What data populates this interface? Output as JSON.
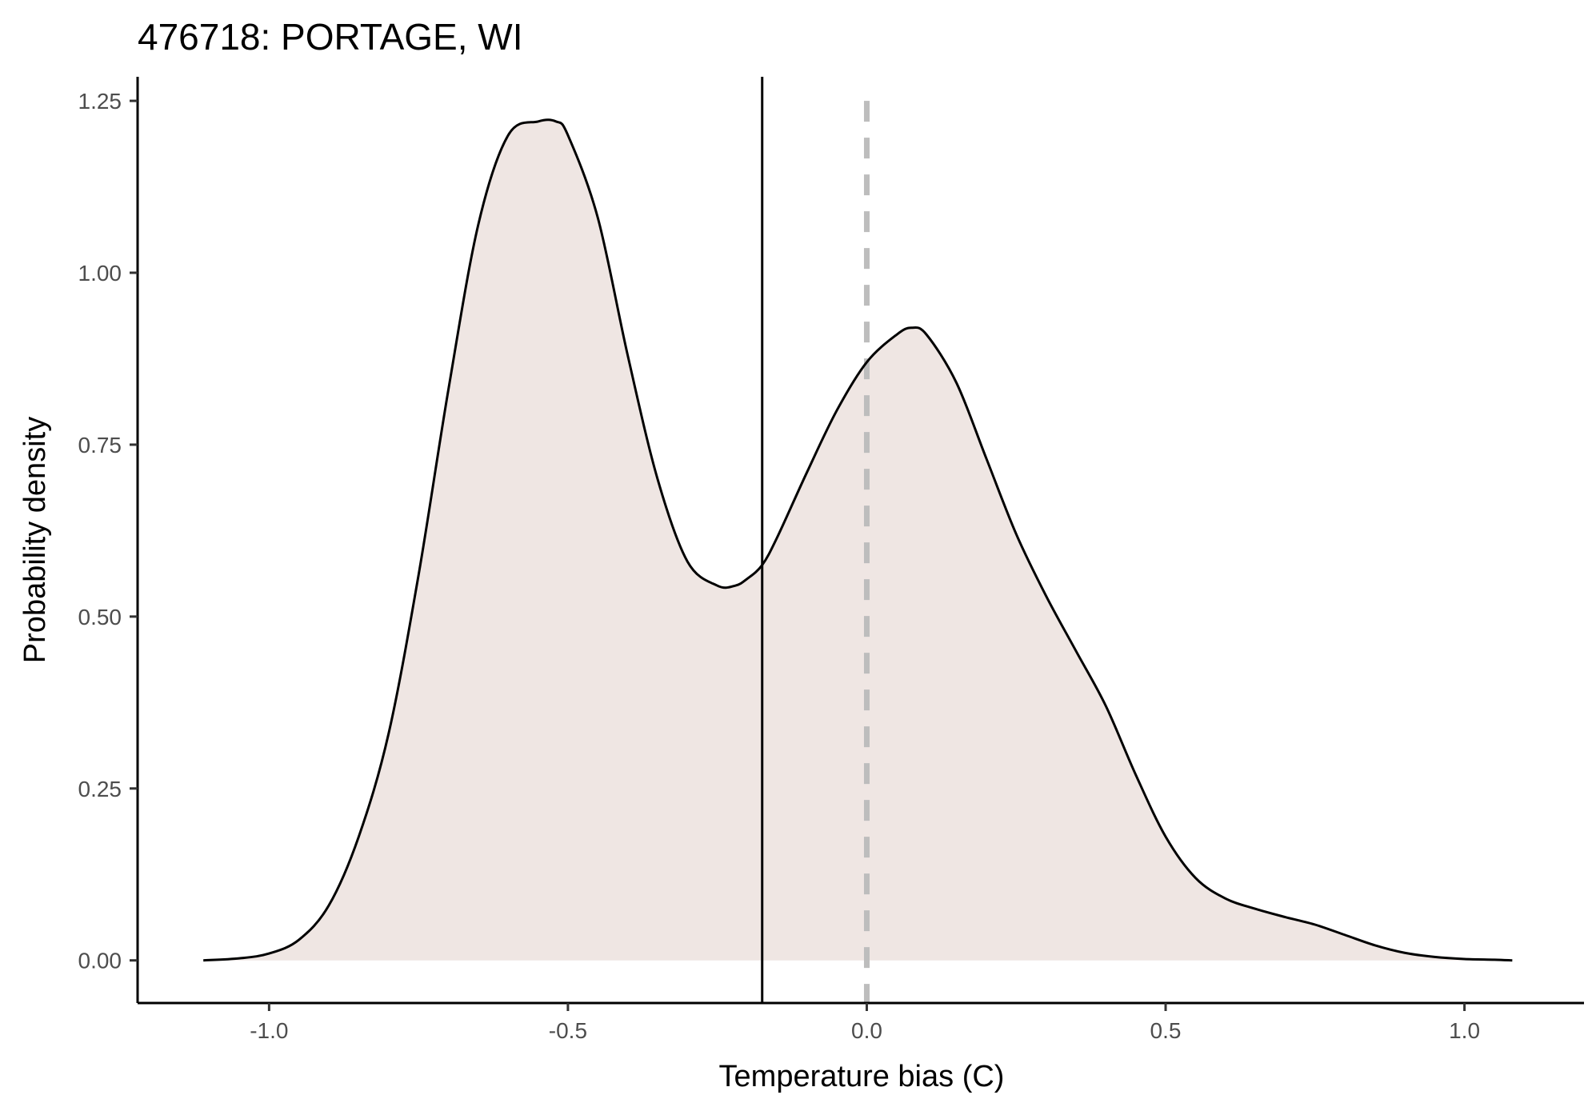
{
  "chart_data": {
    "type": "area",
    "title": "476718: PORTAGE, WI",
    "xlabel": "Temperature bias (C)",
    "ylabel": "Probability density",
    "xlim": [
      -1.22,
      1.2
    ],
    "ylim": [
      -0.062,
      1.285
    ],
    "x_ticks": [
      -1.0,
      -0.5,
      0.0,
      0.5,
      1.0
    ],
    "x_tick_labels": [
      "-1.0",
      "-0.5",
      "0.0",
      "0.5",
      "1.0"
    ],
    "y_ticks": [
      0.0,
      0.25,
      0.5,
      0.75,
      1.0,
      1.25
    ],
    "y_tick_labels": [
      "0.00",
      "0.25",
      "0.50",
      "0.75",
      "1.00",
      "1.25"
    ],
    "grid": false,
    "legend": "none",
    "colors": {
      "fill": "#efe6e3",
      "curve": "#000000",
      "mean_line": "#000000",
      "zero_line": "#bdbdbd"
    },
    "reference_lines": {
      "mean_bias_x": -0.175,
      "zero_x": 0.0
    },
    "series": [
      {
        "x": [
          -1.11,
          -1.05,
          -1.0,
          -0.95,
          -0.9,
          -0.85,
          -0.8,
          -0.75,
          -0.7,
          -0.65,
          -0.6,
          -0.55,
          -0.52,
          -0.5,
          -0.45,
          -0.4,
          -0.35,
          -0.3,
          -0.25,
          -0.22,
          -0.2,
          -0.175,
          -0.15,
          -0.1,
          -0.05,
          0.0,
          0.05,
          0.075,
          0.1,
          0.15,
          0.2,
          0.25,
          0.3,
          0.35,
          0.4,
          0.45,
          0.5,
          0.55,
          0.6,
          0.65,
          0.7,
          0.75,
          0.8,
          0.85,
          0.9,
          0.95,
          1.0,
          1.05,
          1.08
        ],
        "y": [
          0.0,
          0.003,
          0.01,
          0.03,
          0.08,
          0.18,
          0.33,
          0.56,
          0.83,
          1.07,
          1.2,
          1.22,
          1.22,
          1.2,
          1.08,
          0.88,
          0.7,
          0.58,
          0.545,
          0.545,
          0.555,
          0.575,
          0.615,
          0.71,
          0.8,
          0.87,
          0.91,
          0.92,
          0.91,
          0.84,
          0.73,
          0.62,
          0.53,
          0.45,
          0.37,
          0.27,
          0.18,
          0.12,
          0.09,
          0.075,
          0.063,
          0.052,
          0.037,
          0.022,
          0.011,
          0.005,
          0.002,
          0.001,
          0.0
        ]
      }
    ]
  }
}
